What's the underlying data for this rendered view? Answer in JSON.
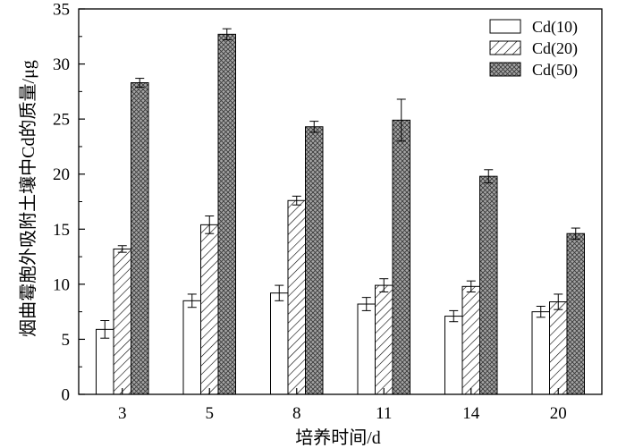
{
  "chart_data": {
    "type": "bar",
    "title": "",
    "xlabel": "培养时间/d",
    "ylabel": "烟曲霉胞外吸附土壤中Cd的质量/μg",
    "categories": [
      "3",
      "5",
      "8",
      "11",
      "14",
      "20"
    ],
    "ylim": [
      0,
      35
    ],
    "yticks": [
      0,
      5,
      10,
      15,
      20,
      25,
      30,
      35
    ],
    "grid": false,
    "legend_position": "top-right",
    "series": [
      {
        "name": "Cd(10)",
        "pattern": "none",
        "fill": "#ffffff",
        "values": [
          5.9,
          8.5,
          9.2,
          8.2,
          7.1,
          7.5
        ],
        "errors": [
          0.8,
          0.6,
          0.7,
          0.6,
          0.5,
          0.5
        ]
      },
      {
        "name": "Cd(20)",
        "pattern": "diagonal-hatch",
        "fill": "#ffffff",
        "values": [
          13.2,
          15.4,
          17.6,
          9.9,
          9.8,
          8.4
        ],
        "errors": [
          0.3,
          0.8,
          0.4,
          0.6,
          0.5,
          0.7
        ]
      },
      {
        "name": "Cd(50)",
        "pattern": "crosshatch",
        "fill": "#9a9a9a",
        "values": [
          28.3,
          32.7,
          24.3,
          24.9,
          19.8,
          14.6
        ],
        "errors": [
          0.4,
          0.5,
          0.5,
          1.9,
          0.6,
          0.5
        ]
      }
    ]
  }
}
